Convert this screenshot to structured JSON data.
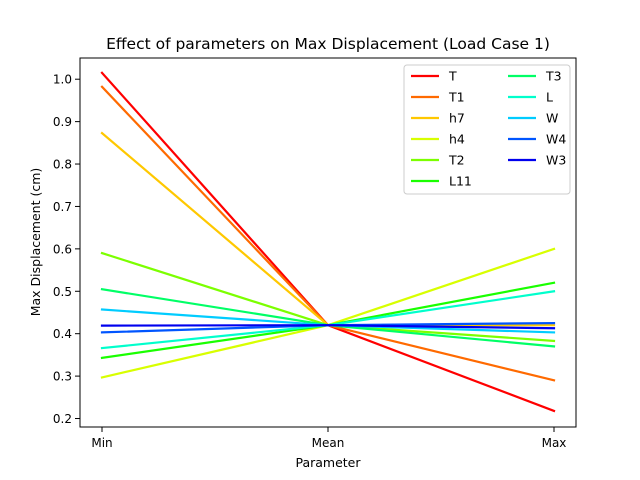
{
  "chart_data": {
    "type": "line",
    "title": "Effect of parameters on Max Displacement (Load Case 1)",
    "xlabel": "Parameter",
    "ylabel": "Max Displacement (cm)",
    "categories": [
      "Min",
      "Mean",
      "Max"
    ],
    "ylim": [
      0.18,
      1.05
    ],
    "yticks": [
      "0.2",
      "0.3",
      "0.4",
      "0.5",
      "0.6",
      "0.7",
      "0.8",
      "0.9",
      "1.0"
    ],
    "grid": false,
    "legend_position": "top-right",
    "legend_columns": 2,
    "series": [
      {
        "name": "T",
        "color": "#ff0000",
        "values": [
          1.015,
          0.42,
          0.218
        ]
      },
      {
        "name": "T1",
        "color": "#ff6a00",
        "values": [
          0.982,
          0.42,
          0.29
        ]
      },
      {
        "name": "h7",
        "color": "#ffc800",
        "values": [
          0.873,
          0.42,
          0.42
        ]
      },
      {
        "name": "h4",
        "color": "#d8ff00",
        "values": [
          0.297,
          0.42,
          0.6
        ]
      },
      {
        "name": "T2",
        "color": "#7cff00",
        "values": [
          0.59,
          0.42,
          0.383
        ]
      },
      {
        "name": "L11",
        "color": "#1aff00",
        "values": [
          0.343,
          0.42,
          0.52
        ]
      },
      {
        "name": "T3",
        "color": "#00ff66",
        "values": [
          0.505,
          0.42,
          0.37
        ]
      },
      {
        "name": "L",
        "color": "#00ffcc",
        "values": [
          0.366,
          0.42,
          0.5
        ]
      },
      {
        "name": "W",
        "color": "#00ccff",
        "values": [
          0.457,
          0.42,
          0.403
        ]
      },
      {
        "name": "W4",
        "color": "#0055ff",
        "values": [
          0.403,
          0.42,
          0.425
        ]
      },
      {
        "name": "W3",
        "color": "#0000ee",
        "values": [
          0.419,
          0.42,
          0.413
        ]
      }
    ]
  }
}
